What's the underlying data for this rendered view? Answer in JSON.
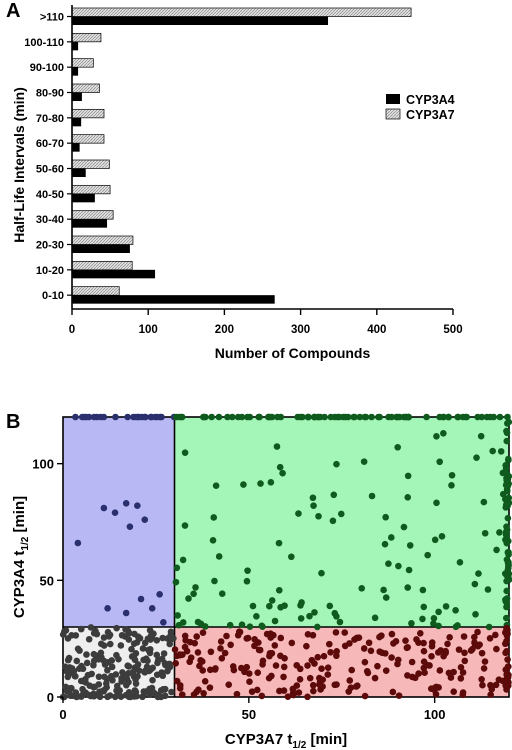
{
  "panels": {
    "a": "A",
    "b": "B"
  },
  "chart_data": [
    {
      "type": "bar",
      "orientation": "horizontal",
      "categories": [
        ">110",
        "100-110",
        "90-100",
        "80-90",
        "70-80",
        "60-70",
        "50-60",
        "40-50",
        "30-40",
        "20-30",
        "10-20",
        "0-10"
      ],
      "series": [
        {
          "name": "CYP3A4",
          "values": [
            336,
            8,
            8,
            13,
            12,
            10,
            18,
            30,
            46,
            76,
            109,
            266
          ],
          "color": "#000000",
          "pattern": "solid"
        },
        {
          "name": "CYP3A7",
          "values": [
            445,
            38,
            28,
            36,
            42,
            42,
            49,
            50,
            54,
            80,
            79,
            62
          ],
          "color": "#c8c8c8",
          "pattern": "hatched"
        }
      ],
      "xlabel": "Number of Compounds",
      "ylabel": "Half-Life Intervals  (min)",
      "xlim": [
        0,
        500
      ],
      "xticks": [
        "0",
        "100",
        "200",
        "300",
        "400",
        "500"
      ],
      "legend_position": "right"
    },
    {
      "type": "scatter",
      "xlabel_main": "CYP3A7 t",
      "xlabel_sub": "1/2",
      "xlabel_unit": " [min]",
      "ylabel_main": "CYP3A4 t",
      "ylabel_sub": "1/2",
      "ylabel_unit": " [min]",
      "xlim": [
        0,
        120
      ],
      "ylim": [
        0,
        120
      ],
      "xticks": [
        "0",
        "50",
        "100"
      ],
      "yticks": [
        "0",
        "50",
        "100"
      ],
      "threshold_x": 30,
      "threshold_y": 30,
      "regions": [
        {
          "x": [
            0,
            30
          ],
          "y": [
            30,
            120
          ],
          "color": "#b8b8f4"
        },
        {
          "x": [
            30,
            120
          ],
          "y": [
            30,
            120
          ],
          "color": "#a4f5b8"
        },
        {
          "x": [
            0,
            30
          ],
          "y": [
            0,
            30
          ],
          "color": "#eeeeee"
        },
        {
          "x": [
            30,
            120
          ],
          "y": [
            0,
            30
          ],
          "color": "#f6b8b8"
        }
      ],
      "point_colors": {
        "blue": "#2a2f6e",
        "green": "#0f5a1d",
        "gray": "#3c3c3c",
        "red": "#5c0a0a"
      },
      "point_counts_approx": {
        "blue": 60,
        "green": 320,
        "gray": 270,
        "red": 300
      }
    }
  ]
}
